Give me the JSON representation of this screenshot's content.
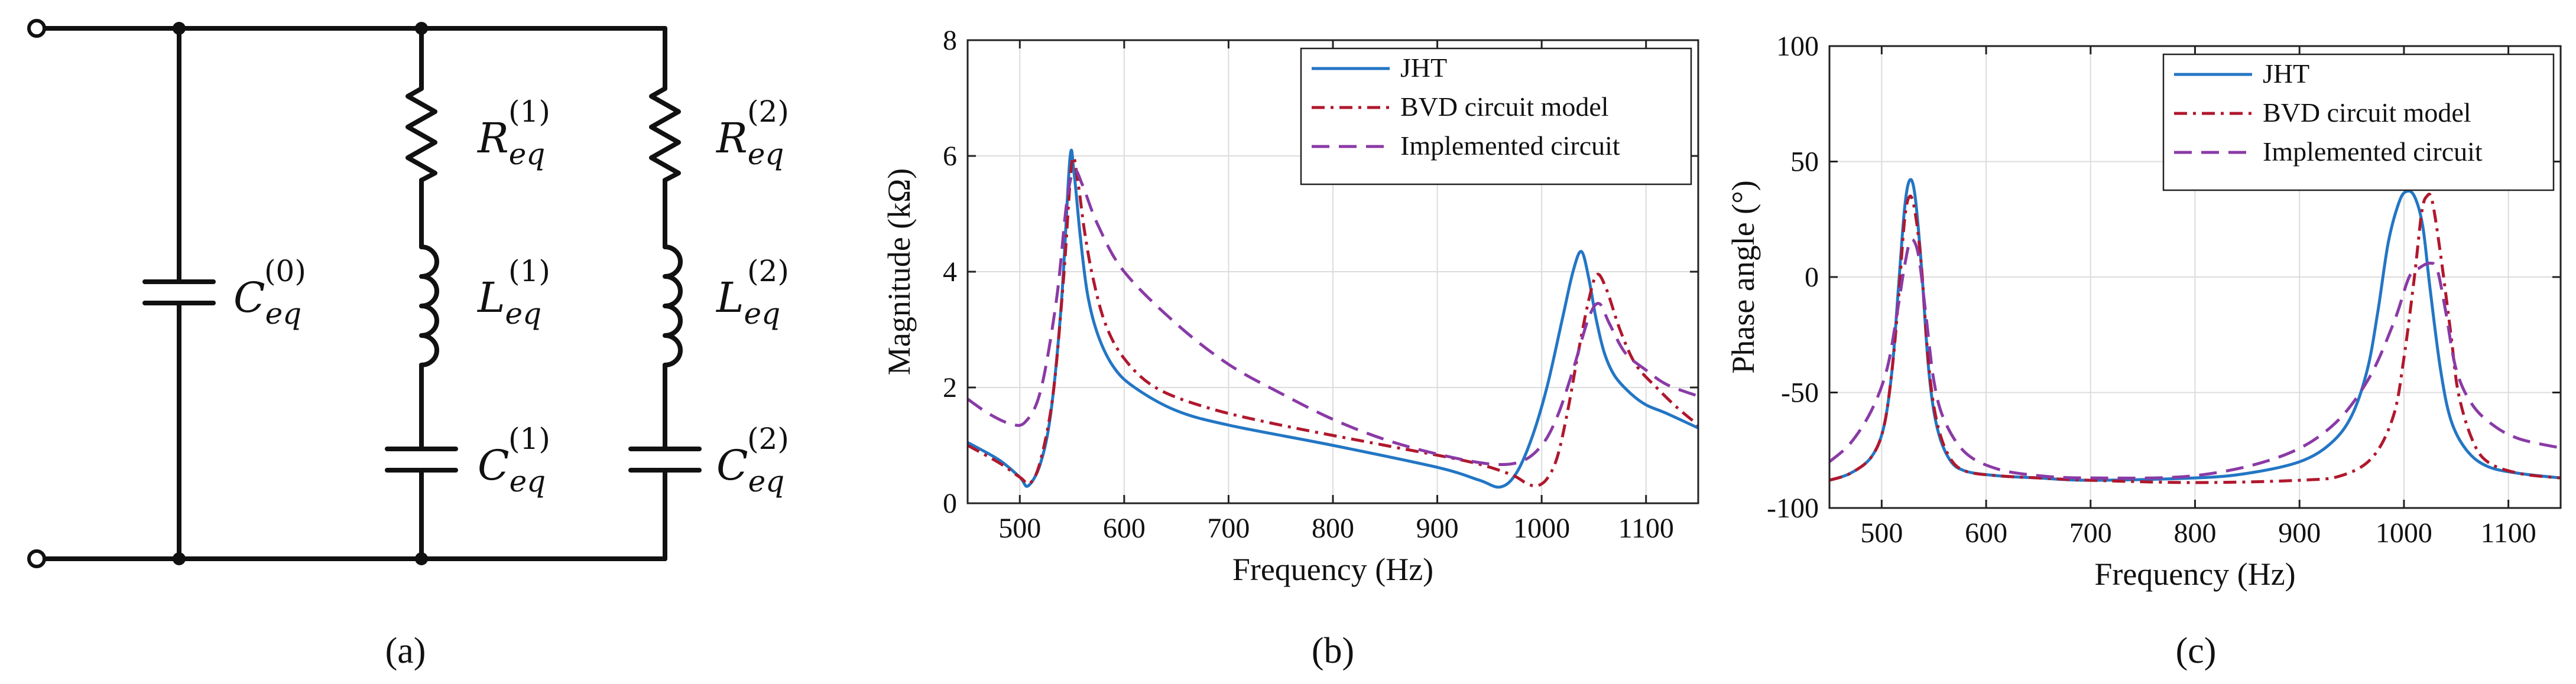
{
  "colors": {
    "jht": "#2376c4",
    "bvd": "#b0182d",
    "implemented": "#8a3aa6",
    "grid": "#dcdcdc",
    "wire": "#111111"
  },
  "circuit": {
    "panel_label": "(a)",
    "components": [
      {
        "id": "C0",
        "symbol": "C",
        "sub": "eq",
        "sup": "(0)"
      },
      {
        "id": "R1",
        "symbol": "R",
        "sub": "eq",
        "sup": "(1)"
      },
      {
        "id": "L1",
        "symbol": "L",
        "sub": "eq",
        "sup": "(1)"
      },
      {
        "id": "C1",
        "symbol": "C",
        "sub": "eq",
        "sup": "(1)"
      },
      {
        "id": "R2",
        "symbol": "R",
        "sub": "eq",
        "sup": "(2)"
      },
      {
        "id": "L2",
        "symbol": "L",
        "sub": "eq",
        "sup": "(2)"
      },
      {
        "id": "C2",
        "symbol": "C",
        "sub": "eq",
        "sup": "(2)"
      }
    ]
  },
  "chart_data": [
    {
      "type": "line",
      "panel_label": "(b)",
      "title": "",
      "xlabel": "Frequency (Hz)",
      "ylabel": "Magnitude (kΩ)",
      "xlim": [
        450,
        1150
      ],
      "ylim": [
        0,
        8
      ],
      "xticks": [
        500,
        600,
        700,
        800,
        900,
        1000,
        1100
      ],
      "yticks": [
        0,
        2,
        4,
        6,
        8
      ],
      "grid": true,
      "legend": "top-right",
      "series": [
        {
          "name": "JHT",
          "style": "solid",
          "color": "#2376c4",
          "x": [
            450,
            480,
            500,
            508,
            520,
            530,
            540,
            548,
            552,
            558,
            565,
            575,
            590,
            610,
            650,
            700,
            800,
            900,
            940,
            960,
            975,
            990,
            1005,
            1020,
            1030,
            1038,
            1045,
            1052,
            1060,
            1070,
            1085,
            1100,
            1120,
            1150
          ],
          "y": [
            1.05,
            0.75,
            0.45,
            0.3,
            0.7,
            1.6,
            3.5,
            5.95,
            5.7,
            4.6,
            3.6,
            2.9,
            2.35,
            2.0,
            1.6,
            1.35,
            1.0,
            0.62,
            0.4,
            0.28,
            0.5,
            1.1,
            2.0,
            3.2,
            4.0,
            4.35,
            3.9,
            3.2,
            2.6,
            2.2,
            1.9,
            1.7,
            1.55,
            1.3
          ]
        },
        {
          "name": "BVD circuit model",
          "style": "dashdot",
          "color": "#b0182d",
          "x": [
            450,
            480,
            500,
            510,
            520,
            532,
            542,
            550,
            556,
            562,
            570,
            582,
            600,
            630,
            680,
            750,
            850,
            930,
            970,
            985,
            995,
            1005,
            1015,
            1025,
            1035,
            1045,
            1053,
            1062,
            1075,
            1090,
            1110,
            1130,
            1150
          ],
          "y": [
            1.0,
            0.7,
            0.45,
            0.35,
            0.75,
            1.9,
            3.9,
            5.9,
            5.5,
            4.7,
            3.9,
            3.1,
            2.5,
            2.0,
            1.65,
            1.35,
            1.0,
            0.72,
            0.5,
            0.35,
            0.3,
            0.42,
            0.8,
            1.6,
            2.6,
            3.5,
            3.95,
            3.7,
            3.0,
            2.4,
            2.0,
            1.65,
            1.35
          ]
        },
        {
          "name": "Implemented circuit",
          "style": "dashed",
          "color": "#8a3aa6",
          "x": [
            450,
            470,
            490,
            505,
            520,
            535,
            545,
            552,
            560,
            575,
            600,
            650,
            700,
            750,
            800,
            850,
            900,
            950,
            980,
            1000,
            1015,
            1030,
            1045,
            1055,
            1065,
            1080,
            1100,
            1120,
            1150
          ],
          "y": [
            1.8,
            1.55,
            1.38,
            1.4,
            1.95,
            3.5,
            5.2,
            5.75,
            5.5,
            4.8,
            4.0,
            3.1,
            2.4,
            1.9,
            1.45,
            1.1,
            0.85,
            0.68,
            0.72,
            1.0,
            1.5,
            2.3,
            3.2,
            3.45,
            3.1,
            2.6,
            2.3,
            2.05,
            1.85
          ]
        }
      ]
    },
    {
      "type": "line",
      "panel_label": "(c)",
      "title": "",
      "xlabel": "Frequency (Hz)",
      "ylabel": "Phase angle (°)",
      "xlim": [
        450,
        1150
      ],
      "ylim": [
        -100,
        100
      ],
      "xticks": [
        500,
        600,
        700,
        800,
        900,
        1000,
        1100
      ],
      "yticks": [
        -100,
        -50,
        0,
        50,
        100
      ],
      "grid": true,
      "legend": "top-right",
      "series": [
        {
          "name": "JHT",
          "style": "solid",
          "color": "#2376c4",
          "x": [
            450,
            470,
            490,
            502,
            510,
            516,
            522,
            527,
            532,
            538,
            545,
            553,
            565,
            580,
            610,
            650,
            700,
            800,
            850,
            900,
            930,
            950,
            965,
            975,
            985,
            995,
            1002,
            1010,
            1018,
            1025,
            1035,
            1045,
            1060,
            1080,
            1110,
            1150
          ],
          "y": [
            -88,
            -85,
            -78,
            -65,
            -40,
            -5,
            30,
            42,
            35,
            5,
            -40,
            -65,
            -79,
            -84,
            -86,
            -87,
            -88,
            -87,
            -85,
            -80,
            -72,
            -60,
            -40,
            -15,
            15,
            32,
            37,
            35,
            22,
            -5,
            -40,
            -62,
            -75,
            -82,
            -85,
            -87
          ]
        },
        {
          "name": "BVD circuit model",
          "style": "dashdot",
          "color": "#b0182d",
          "x": [
            450,
            470,
            490,
            502,
            510,
            516,
            522,
            527,
            532,
            538,
            545,
            553,
            565,
            580,
            610,
            650,
            700,
            800,
            900,
            940,
            970,
            990,
            1000,
            1010,
            1017,
            1022,
            1027,
            1035,
            1045,
            1052,
            1065,
            1080,
            1110,
            1150
          ],
          "y": [
            -88,
            -85,
            -78,
            -65,
            -40,
            -10,
            25,
            35,
            28,
            5,
            -38,
            -63,
            -78,
            -84,
            -86,
            -87,
            -88,
            -89,
            -88,
            -86,
            -78,
            -60,
            -35,
            0,
            28,
            35,
            33,
            10,
            -25,
            -50,
            -70,
            -80,
            -85,
            -87
          ]
        },
        {
          "name": "Implemented circuit",
          "style": "dashed",
          "color": "#8a3aa6",
          "x": [
            450,
            470,
            490,
            505,
            515,
            522,
            528,
            535,
            542,
            550,
            560,
            580,
            610,
            650,
            700,
            800,
            880,
            930,
            965,
            990,
            1005,
            1015,
            1025,
            1032,
            1040,
            1050,
            1065,
            1085,
            1110,
            1150
          ],
          "y": [
            -80,
            -72,
            -58,
            -40,
            -15,
            5,
            16,
            10,
            -15,
            -45,
            -62,
            -76,
            -83,
            -86,
            -87,
            -86,
            -78,
            -65,
            -45,
            -20,
            0,
            4,
            6,
            3,
            -15,
            -40,
            -55,
            -64,
            -70,
            -74
          ]
        }
      ]
    }
  ]
}
